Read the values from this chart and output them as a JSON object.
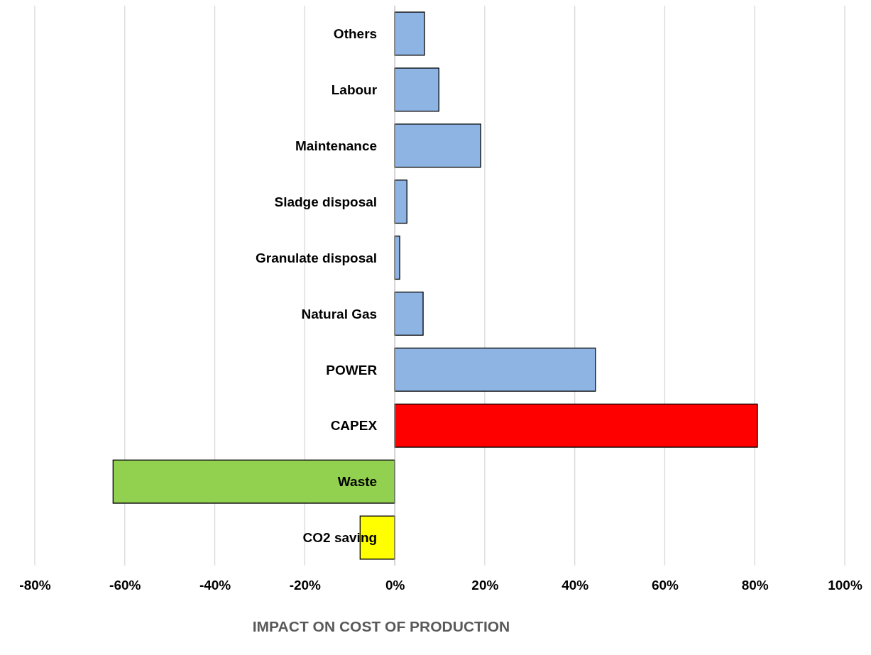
{
  "chart_data": {
    "type": "bar",
    "orientation": "horizontal",
    "xlabel": "IMPACT ON COST OF PRODUCTION",
    "categories": [
      "Others",
      "Labour",
      "Maintenance",
      "Sladge disposal",
      "Granulate disposal",
      "Natural Gas",
      "POWER",
      "CAPEX",
      "Waste",
      "CO2 saving"
    ],
    "values": [
      6.6,
      9.8,
      19.1,
      2.7,
      1.1,
      6.3,
      44.6,
      80.6,
      -62.6,
      -7.7
    ],
    "colors": [
      "#8eb4e3",
      "#8eb4e3",
      "#8eb4e3",
      "#8eb4e3",
      "#8eb4e3",
      "#8eb4e3",
      "#8eb4e3",
      "#ff0000",
      "#92d050",
      "#ffff00"
    ],
    "xlim": [
      -80,
      100
    ],
    "xticks": [
      {
        "value": -80,
        "label": "-80%"
      },
      {
        "value": -60,
        "label": "-60%"
      },
      {
        "value": -40,
        "label": "-40%"
      },
      {
        "value": -20,
        "label": "-20%"
      },
      {
        "value": 0,
        "label": "0%"
      },
      {
        "value": 20,
        "label": "20%"
      },
      {
        "value": 40,
        "label": "40%"
      },
      {
        "value": 60,
        "label": "60%"
      },
      {
        "value": 80,
        "label": "80%"
      },
      {
        "value": 100,
        "label": "100%"
      }
    ],
    "grid": "x"
  }
}
